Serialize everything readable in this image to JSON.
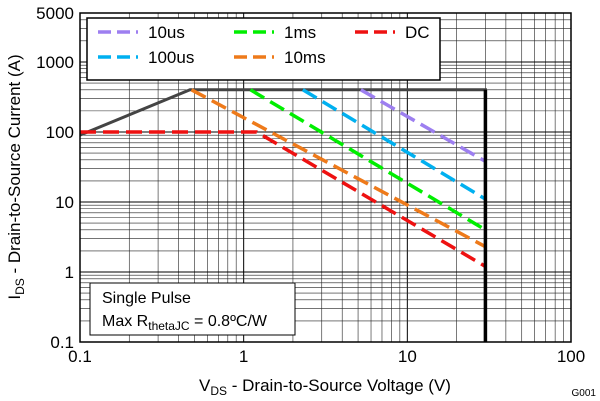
{
  "chart_data": {
    "type": "line",
    "title": "",
    "xlabel": {
      "main": "V",
      "sub": "DS",
      "rest": " - Drain-to-Source Voltage (V)"
    },
    "ylabel": {
      "main": "I",
      "sub": "DS",
      "rest": " - Drain-to-Source Current (A)"
    },
    "x_scale": "log",
    "y_scale": "log",
    "xlim": [
      0.1,
      100
    ],
    "ylim": [
      0.1,
      5000
    ],
    "grid": true,
    "x_ticks": [
      {
        "v": 0.1,
        "label": "0.1"
      },
      {
        "v": 1,
        "label": "1"
      },
      {
        "v": 10,
        "label": "10"
      },
      {
        "v": 100,
        "label": "100"
      }
    ],
    "y_ticks": [
      {
        "v": 0.1,
        "label": "0.1"
      },
      {
        "v": 1,
        "label": "1"
      },
      {
        "v": 10,
        "label": "10"
      },
      {
        "v": 100,
        "label": "100"
      },
      {
        "v": 1000,
        "label": "1000"
      },
      {
        "v": 5000,
        "label": "5000"
      }
    ],
    "legend_position": "top-left",
    "series": [
      {
        "name": "10us",
        "color": "#9d7ff0",
        "points": [
          [
            5.2,
            400
          ],
          [
            30,
            38
          ]
        ]
      },
      {
        "name": "100us",
        "color": "#00b0f0",
        "points": [
          [
            2.3,
            400
          ],
          [
            30,
            11
          ]
        ]
      },
      {
        "name": "1ms",
        "color": "#00ee00",
        "points": [
          [
            1.1,
            400
          ],
          [
            30,
            4
          ]
        ]
      },
      {
        "name": "10ms",
        "color": "#ee7a1a",
        "points": [
          [
            0.48,
            400
          ],
          [
            30,
            2.3
          ]
        ]
      },
      {
        "name": "DC",
        "color": "#ee1111",
        "points": [
          [
            0.1,
            100
          ],
          [
            1.2,
            100
          ],
          [
            30,
            1.2
          ]
        ]
      }
    ],
    "boundary": {
      "color": "#444444",
      "points": [
        [
          0.1,
          90
        ],
        [
          0.47,
          400
        ],
        [
          30,
          400
        ],
        [
          30,
          0.1
        ]
      ]
    },
    "annotation": {
      "line1": "Single Pulse",
      "line2_pre": "Max R",
      "line2_sub": "thetaJC",
      "line2_post": " = 0.8ºC/W"
    },
    "figure_id": "G001"
  }
}
